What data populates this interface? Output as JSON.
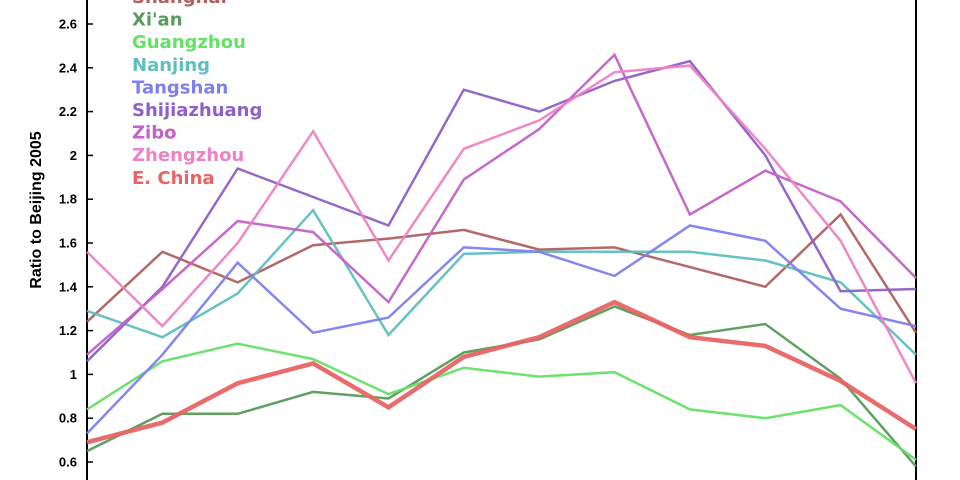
{
  "chart_data": {
    "type": "line",
    "title": "",
    "xlabel": "",
    "ylabel": "Ratio to Beijing 2005",
    "ylim": [
      0.55,
      2.75
    ],
    "xlim": [
      0,
      11
    ],
    "y_ticks": [
      "0.6",
      "0.8",
      "1",
      "1.2",
      "1.4",
      "1.6",
      "1.8",
      "2",
      "2.2",
      "2.4",
      "2.6"
    ],
    "legend_position": "top-left",
    "x": [
      0,
      1,
      2,
      3,
      4,
      5,
      6,
      7,
      8,
      9,
      10,
      11
    ],
    "series": [
      {
        "name": "Shanghai",
        "color": "#b06060",
        "width": 2.5,
        "values": [
          1.24,
          1.56,
          1.42,
          1.59,
          1.62,
          1.66,
          1.57,
          1.58,
          1.49,
          1.4,
          1.73,
          1.19
        ]
      },
      {
        "name": "Xi'an",
        "color": "#5a9a5a",
        "width": 2.5,
        "values": [
          0.65,
          0.82,
          0.82,
          0.92,
          0.89,
          1.1,
          1.16,
          1.31,
          1.18,
          1.23,
          0.98,
          0.58
        ]
      },
      {
        "name": "Guangzhou",
        "color": "#66e066",
        "width": 2.5,
        "values": [
          0.84,
          1.06,
          1.14,
          1.07,
          0.91,
          1.03,
          0.99,
          1.01,
          0.84,
          0.8,
          0.86,
          0.61
        ]
      },
      {
        "name": "Nanjing",
        "color": "#5fbfbf",
        "width": 2.5,
        "values": [
          1.29,
          1.17,
          1.37,
          1.75,
          1.18,
          1.55,
          1.56,
          1.56,
          1.56,
          1.52,
          1.42,
          1.09
        ]
      },
      {
        "name": "Tangshan",
        "color": "#7f7fee",
        "width": 2.5,
        "values": [
          0.73,
          1.09,
          1.51,
          1.19,
          1.26,
          1.58,
          1.56,
          1.45,
          1.68,
          1.61,
          1.3,
          1.22
        ]
      },
      {
        "name": "Shijiazhuang",
        "color": "#8e60c8",
        "width": 2.5,
        "values": [
          1.06,
          1.4,
          1.94,
          1.81,
          1.68,
          2.3,
          2.2,
          2.34,
          2.43,
          2.0,
          1.38,
          1.39
        ]
      },
      {
        "name": "Zibo",
        "color": "#c460c8",
        "width": 2.5,
        "values": [
          1.09,
          1.39,
          1.7,
          1.65,
          1.33,
          1.89,
          2.12,
          2.46,
          1.73,
          1.93,
          1.79,
          1.44
        ]
      },
      {
        "name": "Zhengzhou",
        "color": "#ee82c4",
        "width": 2.5,
        "values": [
          1.56,
          1.22,
          1.6,
          2.11,
          1.52,
          2.03,
          2.16,
          2.38,
          2.41,
          2.03,
          1.61,
          0.96
        ]
      },
      {
        "name": "E. China",
        "color": "#e86464",
        "width": 4.5,
        "values": [
          0.69,
          0.78,
          0.96,
          1.05,
          0.85,
          1.08,
          1.17,
          1.33,
          1.17,
          1.13,
          0.97,
          0.75
        ]
      }
    ]
  }
}
